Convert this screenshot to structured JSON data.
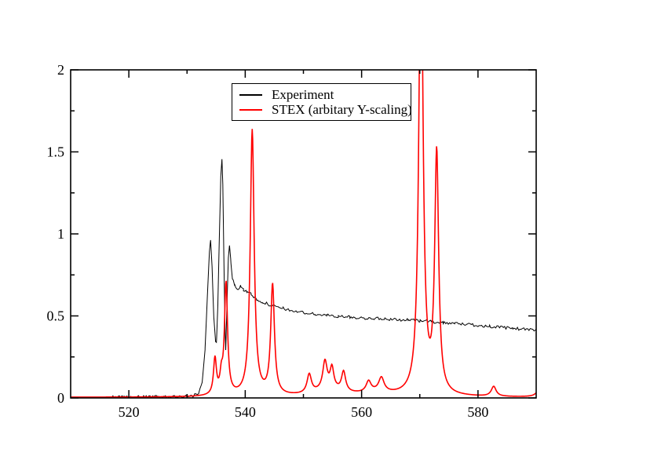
{
  "figure": {
    "background": "#ffffff",
    "frame_color": "#000000"
  },
  "chart_data": {
    "type": "line",
    "title": "",
    "xlabel": "",
    "ylabel": "",
    "xlim": [
      510,
      590
    ],
    "ylim": [
      0,
      2
    ],
    "grid": false,
    "x_major_ticks": [
      520,
      540,
      560,
      580
    ],
    "x_major_tick_labels": [
      "520",
      "540",
      "560",
      "580"
    ],
    "x_minor_ticks": [
      530,
      550,
      570
    ],
    "y_major_ticks": [
      0,
      0.5,
      1,
      1.5,
      2
    ],
    "y_major_tick_labels": [
      "0",
      "0.5",
      "1",
      "1.5",
      "2"
    ],
    "y_minor_ticks": [
      0.25,
      0.75,
      1.25,
      1.75
    ],
    "legend": {
      "position": "top-center",
      "entries": [
        {
          "label": "Experiment",
          "color": "#000000"
        },
        {
          "label": "STEX (arbitary Y-scaling)",
          "color": "#ff0000"
        }
      ]
    },
    "series": [
      {
        "name": "Experiment",
        "color": "#000000",
        "line_width": 1,
        "style": "anchors_plus_noise",
        "noise_amplitude": 0.009,
        "noise_from_x": 517,
        "sample_step": 0.22,
        "anchors": [
          [
            510,
            0.002
          ],
          [
            514,
            0.003
          ],
          [
            518,
            0.004
          ],
          [
            522,
            0.005
          ],
          [
            526,
            0.006
          ],
          [
            529,
            0.008
          ],
          [
            531,
            0.012
          ],
          [
            532,
            0.03
          ],
          [
            532.6,
            0.09
          ],
          [
            533.1,
            0.3
          ],
          [
            533.5,
            0.62
          ],
          [
            533.85,
            0.9
          ],
          [
            534.05,
            0.97
          ],
          [
            534.3,
            0.8
          ],
          [
            534.6,
            0.5
          ],
          [
            534.9,
            0.35
          ],
          [
            535.05,
            0.33
          ],
          [
            535.3,
            0.58
          ],
          [
            535.6,
            1.05
          ],
          [
            535.8,
            1.35
          ],
          [
            536.0,
            1.46
          ],
          [
            536.15,
            1.3
          ],
          [
            536.35,
            0.8
          ],
          [
            536.55,
            0.38
          ],
          [
            536.65,
            0.3
          ],
          [
            536.85,
            0.55
          ],
          [
            537.1,
            0.85
          ],
          [
            537.3,
            0.93
          ],
          [
            537.55,
            0.82
          ],
          [
            537.8,
            0.73
          ],
          [
            538.2,
            0.69
          ],
          [
            538.7,
            0.66
          ],
          [
            539.2,
            0.68
          ],
          [
            539.7,
            0.66
          ],
          [
            540.3,
            0.65
          ],
          [
            541,
            0.63
          ],
          [
            542,
            0.6
          ],
          [
            543,
            0.585
          ],
          [
            544,
            0.57
          ],
          [
            545,
            0.558
          ],
          [
            546.5,
            0.545
          ],
          [
            548,
            0.532
          ],
          [
            550,
            0.52
          ],
          [
            552,
            0.51
          ],
          [
            554,
            0.503
          ],
          [
            556,
            0.498
          ],
          [
            558,
            0.492
          ],
          [
            560,
            0.488
          ],
          [
            562,
            0.485
          ],
          [
            564,
            0.481
          ],
          [
            566,
            0.478
          ],
          [
            568,
            0.475
          ],
          [
            570,
            0.471
          ],
          [
            572,
            0.465
          ],
          [
            574,
            0.46
          ],
          [
            576,
            0.455
          ],
          [
            578,
            0.449
          ],
          [
            580,
            0.442
          ],
          [
            582,
            0.436
          ],
          [
            584,
            0.43
          ],
          [
            586,
            0.424
          ],
          [
            588,
            0.419
          ],
          [
            590,
            0.414
          ]
        ]
      },
      {
        "name": "STEX (arbitary Y-scaling)",
        "color": "#ff0000",
        "line_width": 1.6,
        "style": "lorentzian_peaks",
        "baseline": 0.004,
        "sample_step": 0.08,
        "peaks": [
          {
            "center": 534.8,
            "height": 0.22,
            "hwhm": 0.3
          },
          {
            "center": 535.9,
            "height": 0.1,
            "hwhm": 0.28
          },
          {
            "center": 536.7,
            "height": 0.68,
            "hwhm": 0.32
          },
          {
            "center": 541.2,
            "height": 1.62,
            "hwhm": 0.4
          },
          {
            "center": 544.7,
            "height": 0.67,
            "hwhm": 0.38
          },
          {
            "center": 551.0,
            "height": 0.115,
            "hwhm": 0.45
          },
          {
            "center": 553.7,
            "height": 0.17,
            "hwhm": 0.45
          },
          {
            "center": 554.9,
            "height": 0.125,
            "hwhm": 0.38
          },
          {
            "center": 556.9,
            "height": 0.12,
            "hwhm": 0.42
          },
          {
            "center": 554.5,
            "height": 0.04,
            "hwhm": 3.0
          },
          {
            "center": 561.2,
            "height": 0.065,
            "hwhm": 0.5
          },
          {
            "center": 563.4,
            "height": 0.085,
            "hwhm": 0.55
          },
          {
            "center": 562.5,
            "height": 0.02,
            "hwhm": 3.0
          },
          {
            "center": 570.2,
            "height": 2.9,
            "hwhm": 0.42
          },
          {
            "center": 572.9,
            "height": 1.46,
            "hwhm": 0.4
          },
          {
            "center": 582.7,
            "height": 0.06,
            "hwhm": 0.5
          },
          {
            "center": 590.6,
            "height": 0.05,
            "hwhm": 0.6
          }
        ],
        "note": "tallest peak at 570.2 is clipped at top of axis (y > 2)"
      }
    ]
  }
}
